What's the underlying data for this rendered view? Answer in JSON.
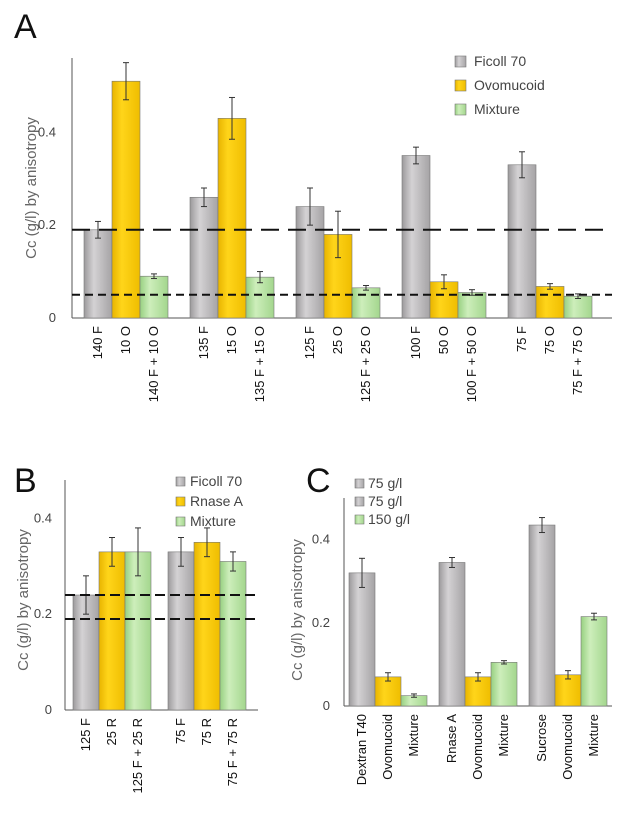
{
  "colors": {
    "ficoll": "#b9b7b9",
    "ficoll_dark": "#8c8a8c",
    "ovomucoid": "#f7c900",
    "ovomucoid_dark": "#d9a800",
    "mixture": "#b9e3a3",
    "mixture_dark": "#8fc97a"
  },
  "chart_data": [
    {
      "panel": "A",
      "type": "bar",
      "ylabel": "Cc (g/l) by anisotropy",
      "ylim": [
        0,
        0.56
      ],
      "yticks": [
        "0",
        "0.2",
        "0.4"
      ],
      "ytick_values": [
        0,
        0.2,
        0.4
      ],
      "reference_lines": [
        0.19,
        0.05
      ],
      "legend": [
        {
          "label": "Ficoll 70",
          "color": "ficoll"
        },
        {
          "label": "Ovomucoid",
          "color": "ovomucoid"
        },
        {
          "label": "Mixture",
          "color": "mixture"
        }
      ],
      "groups": [
        {
          "bars": [
            {
              "label": "140 F",
              "value": 0.19,
              "err": 0.018,
              "color": "ficoll"
            },
            {
              "label": "10 O",
              "value": 0.51,
              "err": 0.04,
              "color": "ovomucoid"
            },
            {
              "label": "140 F + 10 O",
              "value": 0.09,
              "err": 0.005,
              "color": "mixture"
            }
          ]
        },
        {
          "bars": [
            {
              "label": "135 F",
              "value": 0.26,
              "err": 0.02,
              "color": "ficoll"
            },
            {
              "label": "15 O",
              "value": 0.43,
              "err": 0.045,
              "color": "ovomucoid"
            },
            {
              "label": "135 F + 15 O",
              "value": 0.088,
              "err": 0.012,
              "color": "mixture"
            }
          ]
        },
        {
          "bars": [
            {
              "label": "125 F",
              "value": 0.24,
              "err": 0.04,
              "color": "ficoll"
            },
            {
              "label": "25 O",
              "value": 0.18,
              "err": 0.05,
              "color": "ovomucoid"
            },
            {
              "label": "125 F + 25 O",
              "value": 0.065,
              "err": 0.005,
              "color": "mixture"
            }
          ]
        },
        {
          "bars": [
            {
              "label": "100 F",
              "value": 0.35,
              "err": 0.018,
              "color": "ficoll"
            },
            {
              "label": "50 O",
              "value": 0.078,
              "err": 0.015,
              "color": "ovomucoid"
            },
            {
              "label": "100 F + 50 O",
              "value": 0.055,
              "err": 0.006,
              "color": "mixture"
            }
          ]
        },
        {
          "bars": [
            {
              "label": "75 F",
              "value": 0.33,
              "err": 0.028,
              "color": "ficoll"
            },
            {
              "label": "75 O",
              "value": 0.068,
              "err": 0.006,
              "color": "ovomucoid"
            },
            {
              "label": "75 F + 75 O",
              "value": 0.047,
              "err": 0.005,
              "color": "mixture"
            }
          ]
        }
      ]
    },
    {
      "panel": "B",
      "type": "bar",
      "ylabel": "Cc (g/l) by anisotropy",
      "ylim": [
        0,
        0.48
      ],
      "yticks": [
        "0",
        "0.2",
        "0.4"
      ],
      "ytick_values": [
        0,
        0.2,
        0.4
      ],
      "reference_lines": [
        0.24,
        0.19
      ],
      "legend": [
        {
          "label": "Ficoll 70",
          "color": "ficoll"
        },
        {
          "label": "Rnase A",
          "color": "ovomucoid"
        },
        {
          "label": "Mixture",
          "color": "mixture"
        }
      ],
      "groups": [
        {
          "bars": [
            {
              "label": "125 F",
              "value": 0.24,
              "err": 0.04,
              "color": "ficoll"
            },
            {
              "label": "25 R",
              "value": 0.33,
              "err": 0.03,
              "color": "ovomucoid"
            },
            {
              "label": "125 F + 25 R",
              "value": 0.33,
              "err": 0.05,
              "color": "mixture"
            }
          ]
        },
        {
          "bars": [
            {
              "label": "75 F",
              "value": 0.33,
              "err": 0.03,
              "color": "ficoll"
            },
            {
              "label": "75 R",
              "value": 0.35,
              "err": 0.03,
              "color": "ovomucoid"
            },
            {
              "label": "75 F + 75 R",
              "value": 0.31,
              "err": 0.02,
              "color": "mixture"
            }
          ]
        }
      ]
    },
    {
      "panel": "C",
      "type": "bar",
      "ylabel": "Cc (g/l) by anisotropy",
      "ylim": [
        0,
        0.5
      ],
      "yticks": [
        "0",
        "0.2",
        "0.4"
      ],
      "ytick_values": [
        0,
        0.2,
        0.4
      ],
      "reference_lines": [],
      "legend": [
        {
          "label": "75 g/l",
          "color": "ficoll"
        },
        {
          "label": "75 g/l",
          "color": "ficoll"
        },
        {
          "label": "150 g/l",
          "color": "mixture"
        }
      ],
      "groups": [
        {
          "bars": [
            {
              "label": "Dextran T40",
              "value": 0.32,
              "err": 0.035,
              "color": "ficoll"
            },
            {
              "label": "Ovomucoid",
              "value": 0.07,
              "err": 0.01,
              "color": "ovomucoid"
            },
            {
              "label": "Mixture",
              "value": 0.025,
              "err": 0.004,
              "color": "mixture"
            }
          ]
        },
        {
          "bars": [
            {
              "label": "Rnase A",
              "value": 0.345,
              "err": 0.012,
              "color": "ficoll"
            },
            {
              "label": "Ovomucoid",
              "value": 0.07,
              "err": 0.01,
              "color": "ovomucoid"
            },
            {
              "label": "Mixture",
              "value": 0.105,
              "err": 0.004,
              "color": "mixture"
            }
          ]
        },
        {
          "bars": [
            {
              "label": "Sucrose",
              "value": 0.435,
              "err": 0.018,
              "color": "ficoll"
            },
            {
              "label": "Ovomucoid",
              "value": 0.075,
              "err": 0.01,
              "color": "ovomucoid"
            },
            {
              "label": "Mixture",
              "value": 0.215,
              "err": 0.008,
              "color": "mixture"
            }
          ]
        }
      ]
    }
  ]
}
